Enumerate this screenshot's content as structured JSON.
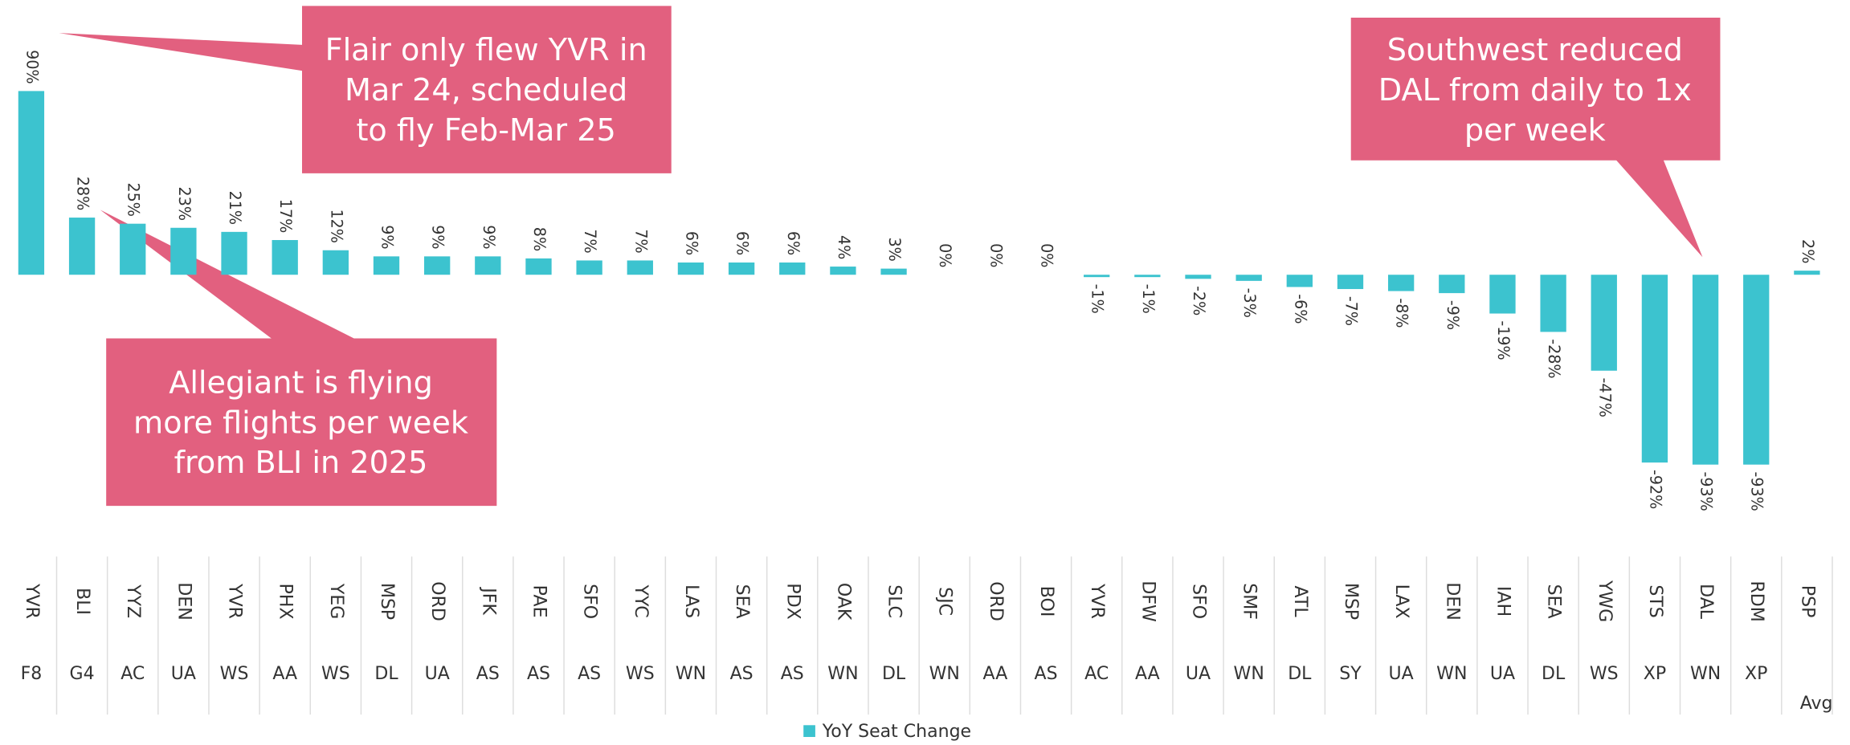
{
  "chart_data": {
    "type": "bar",
    "categories": [
      "YVR",
      "BLI",
      "YYZ",
      "DEN",
      "YVR",
      "PHX",
      "YEG",
      "MSP",
      "ORD",
      "JFK",
      "PAE",
      "SFO",
      "YYC",
      "LAS",
      "SEA",
      "PDX",
      "OAK",
      "SLC",
      "SJC",
      "ORD",
      "BOI",
      "YVR",
      "DFW",
      "SFO",
      "SMF",
      "ATL",
      "MSP",
      "LAX",
      "DEN",
      "IAH",
      "SEA",
      "YWG",
      "STS",
      "DAL",
      "RDM",
      "PSP"
    ],
    "groups": [
      "F8",
      "G4",
      "AC",
      "UA",
      "WS",
      "AA",
      "WS",
      "DL",
      "UA",
      "AS",
      "AS",
      "AS",
      "WS",
      "WN",
      "AS",
      "AS",
      "WN",
      "DL",
      "WN",
      "AA",
      "AS",
      "AC",
      "AA",
      "UA",
      "WN",
      "DL",
      "SY",
      "UA",
      "WN",
      "UA",
      "DL",
      "WS",
      "XP",
      "WN",
      "XP",
      "Avg"
    ],
    "series": [
      {
        "name": "YoY Seat Change",
        "color": "#3cc3cf",
        "values": [
          90,
          28,
          25,
          23,
          21,
          17,
          12,
          9,
          9,
          9,
          8,
          7,
          7,
          6,
          6,
          6,
          4,
          3,
          0,
          0,
          0,
          -1,
          -1,
          -2,
          -3,
          -6,
          -7,
          -8,
          -9,
          -19,
          -28,
          -47,
          -92,
          -93,
          -93,
          2
        ],
        "value_labels": [
          "90%",
          "28%",
          "25%",
          "23%",
          "21%",
          "17%",
          "12%",
          "9%",
          "9%",
          "9%",
          "8%",
          "7%",
          "7%",
          "6%",
          "6%",
          "6%",
          "4%",
          "3%",
          "0%",
          "0%",
          "0%",
          "-1%",
          "-1%",
          "-2%",
          "-3%",
          "-6%",
          "-7%",
          "-8%",
          "-9%",
          "-19%",
          "-28%",
          "-47%",
          "-92%",
          "-93%",
          "-93%",
          "2%"
        ]
      }
    ],
    "legend": "bottom",
    "annotations": [
      {
        "lines": [
          "Flair only flew YVR in",
          "Mar 24, scheduled",
          "to fly Feb-Mar 25"
        ]
      },
      {
        "lines": [
          "Allegiant is flying",
          "more flights per week",
          "from BLI in 2025"
        ]
      },
      {
        "lines": [
          "Southwest reduced",
          "DAL from daily to 1x",
          "per week"
        ]
      }
    ]
  }
}
